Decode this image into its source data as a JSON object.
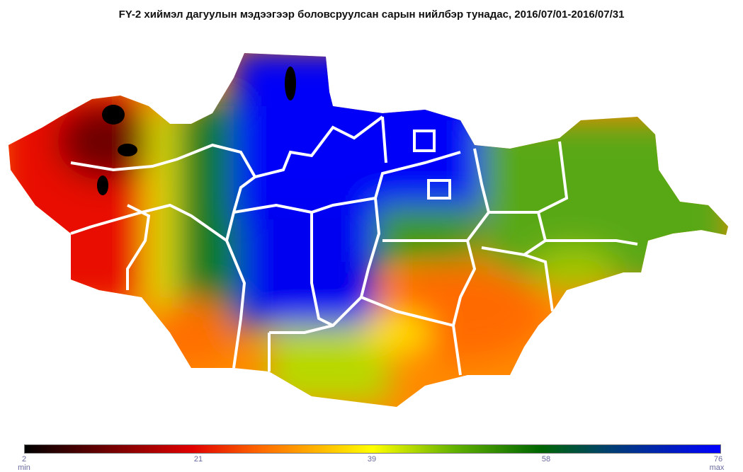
{
  "title": "FY-2 хиймэл дагуулын мэдээгээр боловсруулсан сарын нийлбэр тунадас, 2016/07/01-2016/07/31",
  "legend": {
    "ticks": [
      "2",
      "21",
      "39",
      "58",
      "76"
    ],
    "min_label": "min",
    "max_label": "max",
    "colors": [
      "#000000",
      "#e00000",
      "#ff6a00",
      "#ffff00",
      "#60b000",
      "#006600",
      "#003f70",
      "#0000ff"
    ]
  }
}
